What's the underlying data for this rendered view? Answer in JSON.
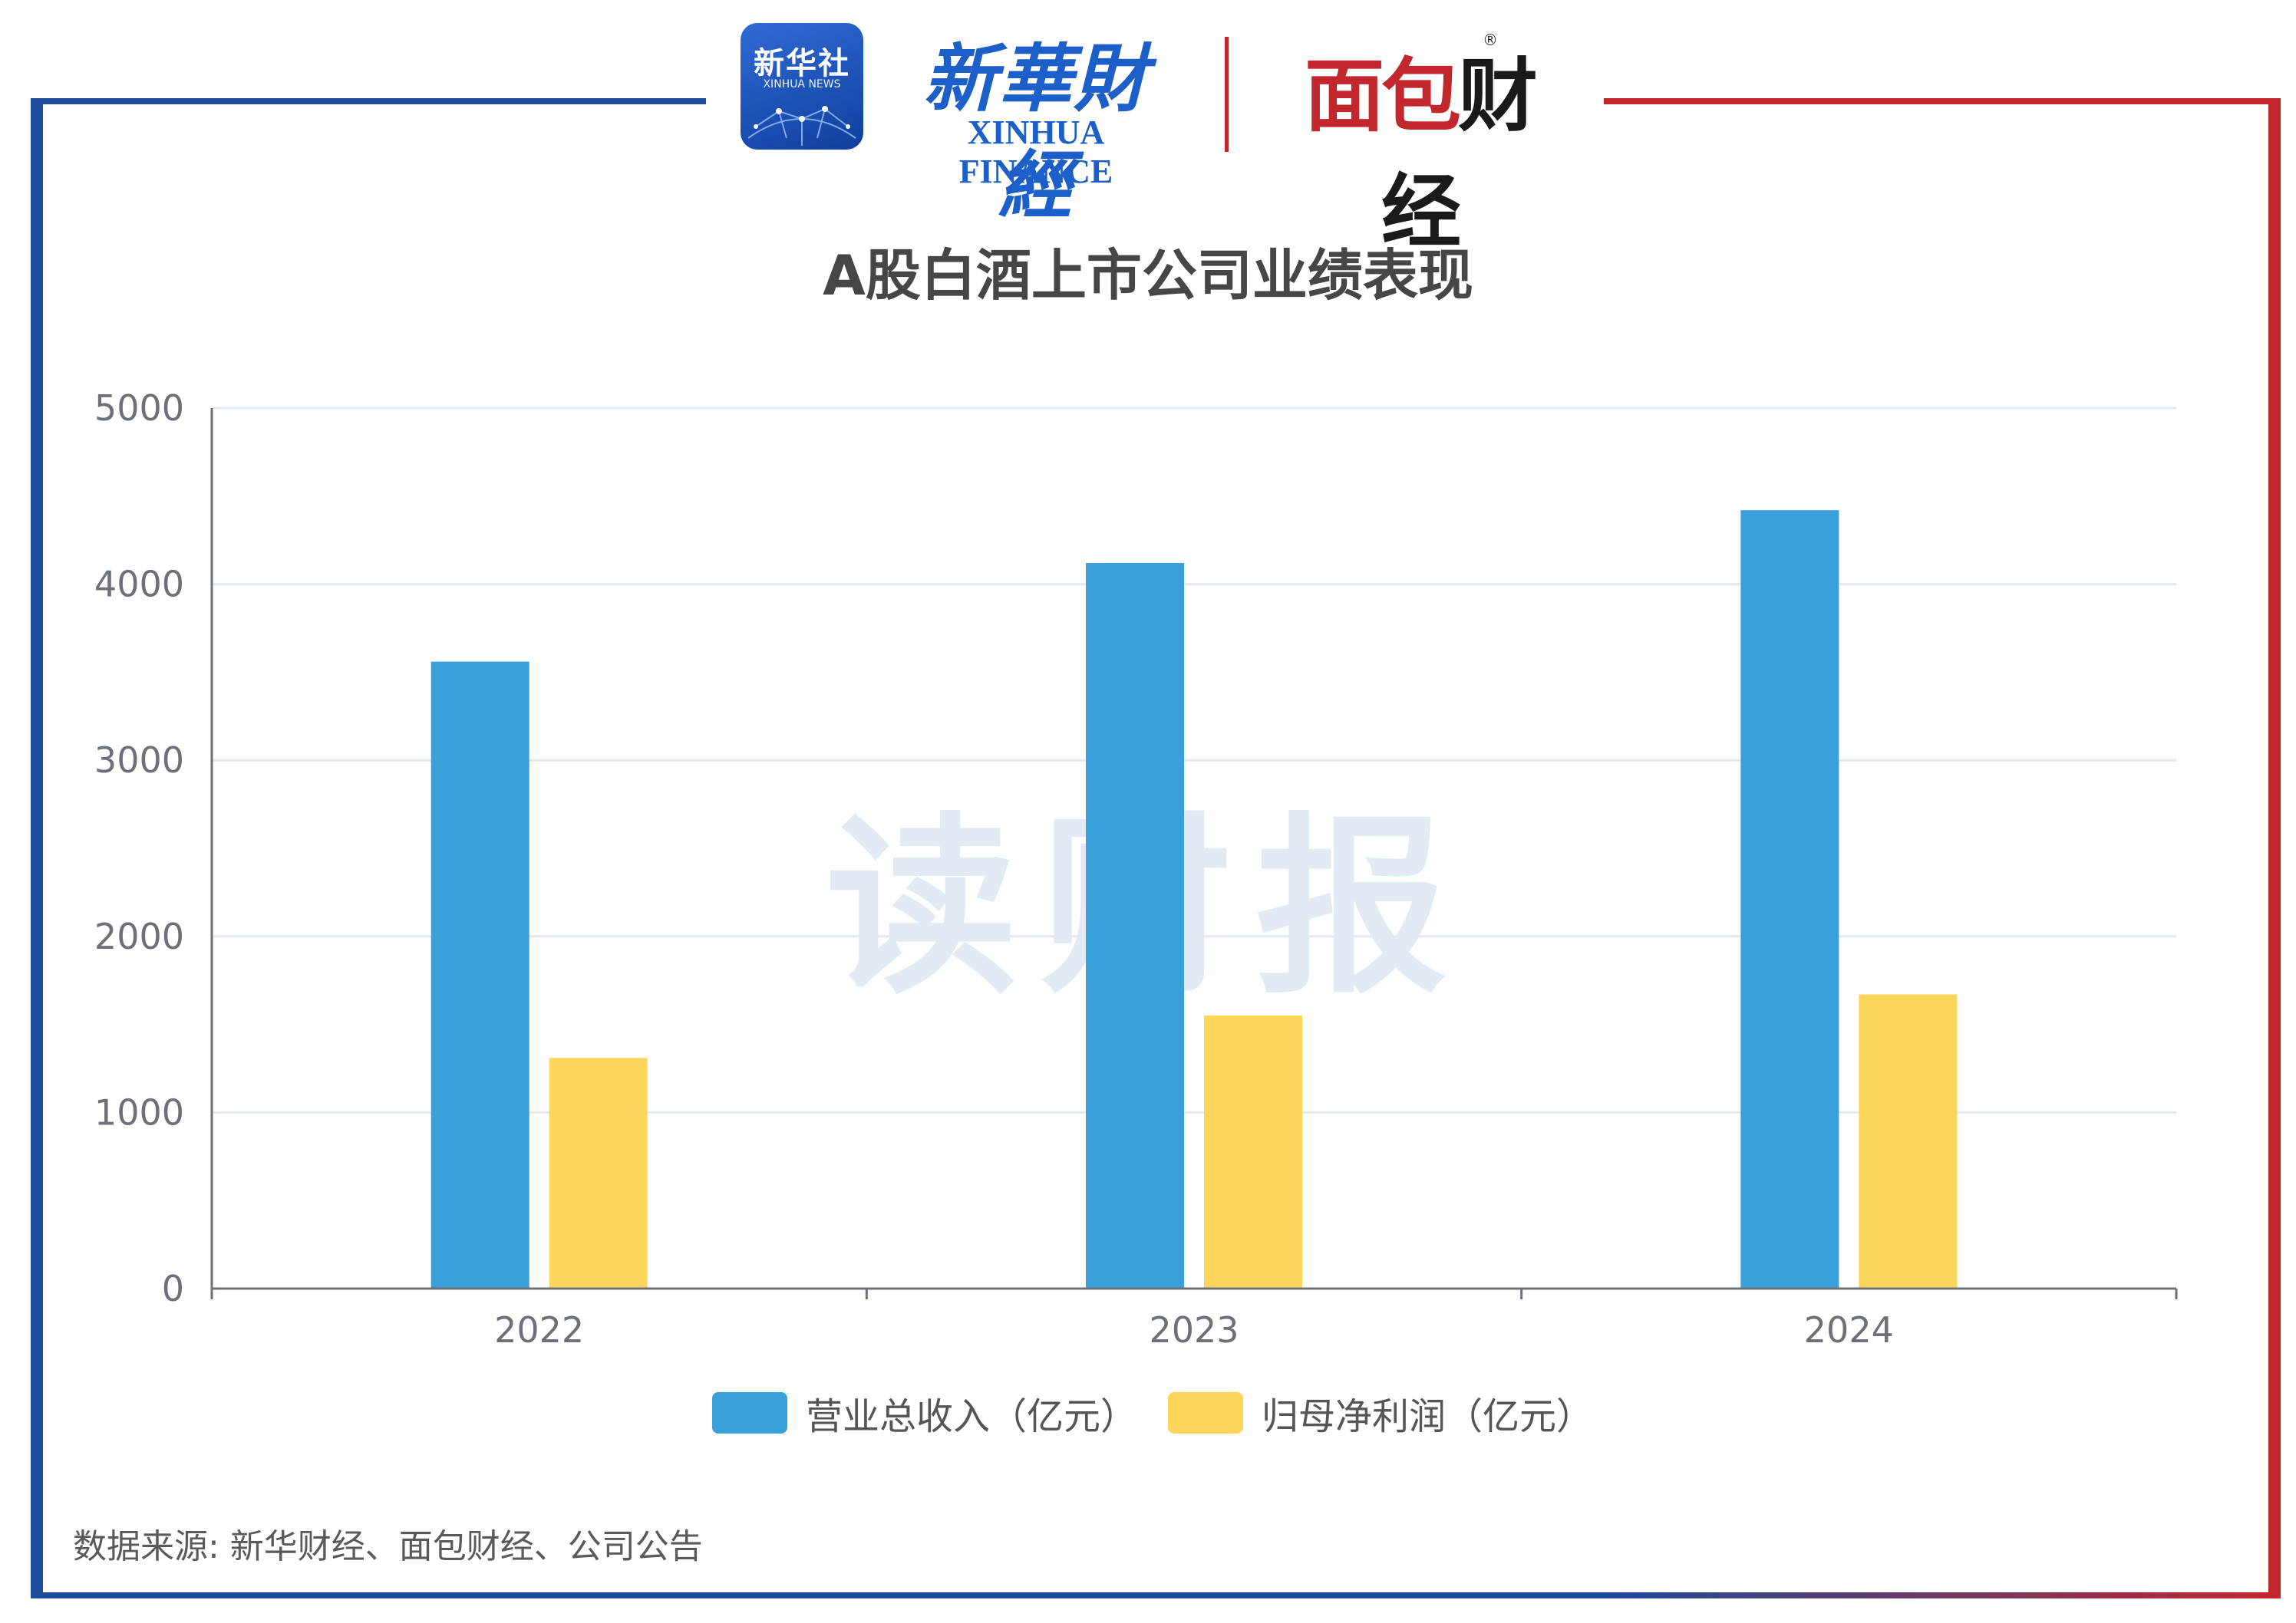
{
  "header": {
    "xinhua_she_logo": "新华社",
    "xinhua_she_logo_en": "XINHUA NEWS",
    "xinhua_finance_logo_cn": "新華財經",
    "xinhua_finance_logo_en": "XINHUA FINANCE",
    "mianbao_logo_part1": "面包",
    "mianbao_logo_part2": "财经",
    "mianbao_registered": "®"
  },
  "watermark": "读财报",
  "colors": {
    "frame_blue": "#1e4a9a",
    "frame_red": "#c1272d",
    "series_revenue": "#3aa0da",
    "series_profit": "#fed55b",
    "gridline": "#e3e8f1",
    "axis": "#6e7079"
  },
  "chart_data": {
    "type": "bar",
    "title": "A股白酒上市公司业绩表现",
    "categories": [
      "2022",
      "2023",
      "2024"
    ],
    "series": [
      {
        "name": "营业总收入（亿元）",
        "values": [
          3560,
          4120,
          4420
        ]
      },
      {
        "name": "归母净利润（亿元）",
        "values": [
          1310,
          1550,
          1670
        ]
      }
    ],
    "ylim": [
      0,
      5000
    ],
    "yticks": [
      "0",
      "1000",
      "2000",
      "3000",
      "4000",
      "5000"
    ],
    "grid": true,
    "legend_position": "bottom-center"
  },
  "footer": {
    "source": "数据来源: 新华财经、面包财经、公司公告"
  }
}
